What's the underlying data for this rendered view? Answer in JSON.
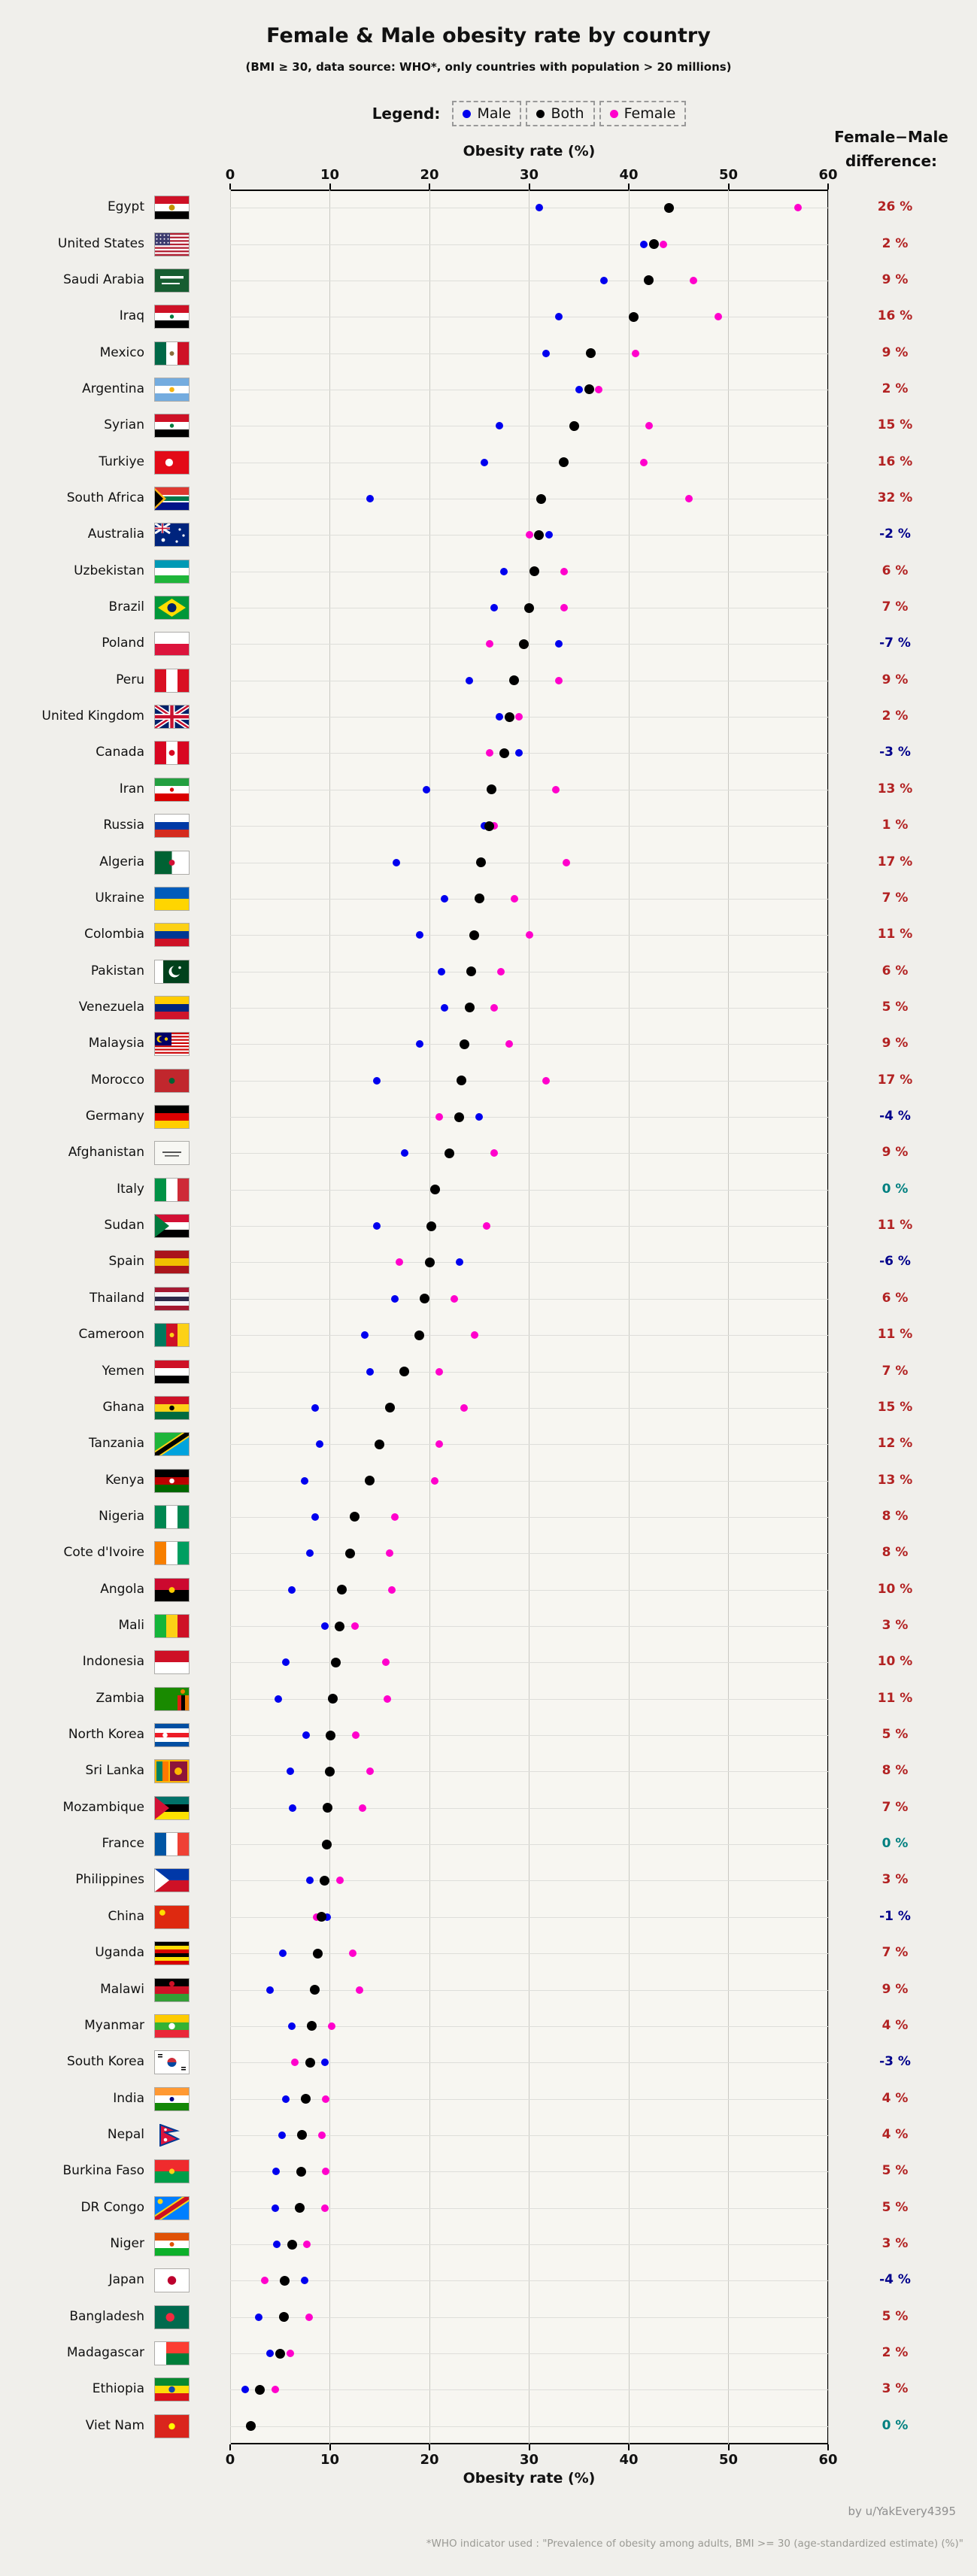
{
  "title": "Female & Male obesity rate by country",
  "subtitle": "(BMI ≥ 30, data source: WHO*, only countries with population > 20 millions)",
  "legend": {
    "label": "Legend:",
    "items": [
      {
        "name": "Male",
        "color": "#0000ee"
      },
      {
        "name": "Both",
        "color": "#000000"
      },
      {
        "name": "Female",
        "color": "#ff00cc"
      }
    ]
  },
  "right_header_line1": "Female−Male",
  "right_header_line2": "difference:",
  "axis_label_top": "Obesity rate (%)",
  "axis_label_bottom": "Obesity rate (%)",
  "footer_credit": "by u/YakEvery4395",
  "footer_note": "*WHO indicator used : \"Prevalence of obesity among adults, BMI >= 30 (age-standardized estimate) (%)\"",
  "colors": {
    "male": "#0000ee",
    "both": "#000000",
    "female": "#ff00cc",
    "diff_positive": "#b22222",
    "diff_negative": "#00008b",
    "diff_zero": "#008080"
  },
  "chart_data": {
    "type": "scatter",
    "title": "Female & Male obesity rate by country",
    "xlabel": "Obesity rate (%)",
    "xlim": [
      0,
      60
    ],
    "x_ticks": [
      0,
      10,
      20,
      30,
      40,
      50,
      60
    ],
    "grid": true,
    "series_names": [
      "Male",
      "Both",
      "Female"
    ],
    "countries": [
      {
        "name": "Egypt",
        "male": 31,
        "both": 44,
        "female": 57,
        "diff": "26 %",
        "flag": {
          "t": "h",
          "c": [
            "#ce1126",
            "#ffffff",
            "#000000"
          ],
          "dot": {
            "c": "#c09300",
            "x": 0.5,
            "y": 0.5,
            "r": 0.13
          }
        }
      },
      {
        "name": "United States",
        "male": 41.5,
        "both": 42.5,
        "female": 43.5,
        "diff": "2 %",
        "flag": {
          "t": "usa"
        }
      },
      {
        "name": "Saudi Arabia",
        "male": 37.5,
        "both": 42,
        "female": 46.5,
        "diff": "9 %",
        "flag": {
          "t": "sa"
        }
      },
      {
        "name": "Iraq",
        "male": 33,
        "both": 40.5,
        "female": 49,
        "diff": "16 %",
        "flag": {
          "t": "h",
          "c": [
            "#ce1126",
            "#ffffff",
            "#000000"
          ],
          "dot": {
            "c": "#007a3d",
            "x": 0.5,
            "y": 0.5,
            "r": 0.09
          }
        }
      },
      {
        "name": "Mexico",
        "male": 31.7,
        "both": 36.2,
        "female": 40.7,
        "diff": "9 %",
        "flag": {
          "t": "v",
          "c": [
            "#006847",
            "#ffffff",
            "#ce1126"
          ],
          "dot": {
            "c": "#8a6d3b",
            "x": 0.5,
            "y": 0.5,
            "r": 0.1
          }
        }
      },
      {
        "name": "Argentina",
        "male": 35,
        "both": 36,
        "female": 37,
        "diff": "2 %",
        "flag": {
          "t": "h",
          "c": [
            "#74acdf",
            "#ffffff",
            "#74acdf"
          ],
          "dot": {
            "c": "#f6b40e",
            "x": 0.5,
            "y": 0.5,
            "r": 0.11
          }
        }
      },
      {
        "name": "Syrian",
        "male": 27,
        "both": 34.5,
        "female": 42,
        "diff": "15 %",
        "flag": {
          "t": "h",
          "c": [
            "#ce1126",
            "#ffffff",
            "#000000"
          ],
          "dot": {
            "c": "#007a3d",
            "x": 0.5,
            "y": 0.5,
            "r": 0.09
          }
        }
      },
      {
        "name": "Turkiye",
        "male": 25.5,
        "both": 33.5,
        "female": 41.5,
        "diff": "16 %",
        "flag": {
          "t": "s",
          "c": [
            "#e30a17"
          ],
          "dot": {
            "c": "#ffffff",
            "x": 0.42,
            "y": 0.5,
            "r": 0.17
          }
        }
      },
      {
        "name": "South Africa",
        "male": 14,
        "both": 31.2,
        "female": 46,
        "diff": "32 %",
        "flag": {
          "t": "za"
        }
      },
      {
        "name": "Australia",
        "male": 32,
        "both": 31,
        "female": 30,
        "diff": "-2 %",
        "flag": {
          "t": "au"
        }
      },
      {
        "name": "Uzbekistan",
        "male": 27.5,
        "both": 30.5,
        "female": 33.5,
        "diff": "6 %",
        "flag": {
          "t": "h",
          "c": [
            "#0099b5",
            "#ffffff",
            "#1eb53a"
          ]
        }
      },
      {
        "name": "Brazil",
        "male": 26.5,
        "both": 30,
        "female": 33.5,
        "diff": "7 %",
        "flag": {
          "t": "br"
        }
      },
      {
        "name": "Poland",
        "male": 33,
        "both": 29.5,
        "female": 26,
        "diff": "-7 %",
        "flag": {
          "t": "h",
          "c": [
            "#ffffff",
            "#dc143c"
          ]
        }
      },
      {
        "name": "Peru",
        "male": 24,
        "both": 28.5,
        "female": 33,
        "diff": "9 %",
        "flag": {
          "t": "v",
          "c": [
            "#d91023",
            "#ffffff",
            "#d91023"
          ]
        }
      },
      {
        "name": "United Kingdom",
        "male": 27,
        "both": 28,
        "female": 29,
        "diff": "2 %",
        "flag": {
          "t": "uk"
        }
      },
      {
        "name": "Canada",
        "male": 29,
        "both": 27.5,
        "female": 26,
        "diff": "-3 %",
        "flag": {
          "t": "v",
          "c": [
            "#d80621",
            "#ffffff",
            "#d80621"
          ],
          "dot": {
            "c": "#d80621",
            "x": 0.5,
            "y": 0.5,
            "r": 0.13
          }
        }
      },
      {
        "name": "Iran",
        "male": 19.7,
        "both": 26.2,
        "female": 32.7,
        "diff": "13 %",
        "flag": {
          "t": "h",
          "c": [
            "#239f40",
            "#ffffff",
            "#da0000"
          ],
          "dot": {
            "c": "#da0000",
            "x": 0.5,
            "y": 0.5,
            "r": 0.09
          }
        }
      },
      {
        "name": "Russia",
        "male": 25.5,
        "both": 26,
        "female": 26.5,
        "diff": "1 %",
        "flag": {
          "t": "h",
          "c": [
            "#ffffff",
            "#0039a6",
            "#d52b1e"
          ]
        }
      },
      {
        "name": "Algeria",
        "male": 16.7,
        "both": 25.2,
        "female": 33.7,
        "diff": "17 %",
        "flag": {
          "t": "v",
          "c": [
            "#006233",
            "#ffffff"
          ],
          "dot": {
            "c": "#d21034",
            "x": 0.5,
            "y": 0.5,
            "r": 0.13
          }
        }
      },
      {
        "name": "Ukraine",
        "male": 21.5,
        "both": 25,
        "female": 28.5,
        "diff": "7 %",
        "flag": {
          "t": "h",
          "c": [
            "#005bbb",
            "#ffd500"
          ]
        }
      },
      {
        "name": "Colombia",
        "male": 19,
        "both": 24.5,
        "female": 30,
        "diff": "11 %",
        "flag": {
          "t": "h",
          "c": [
            "#fcd116",
            "#003893",
            "#ce1126"
          ]
        }
      },
      {
        "name": "Pakistan",
        "male": 21.2,
        "both": 24.2,
        "female": 27.2,
        "diff": "6 %",
        "flag": {
          "t": "pk"
        }
      },
      {
        "name": "Venezuela",
        "male": 21.5,
        "both": 24,
        "female": 26.5,
        "diff": "5 %",
        "flag": {
          "t": "h",
          "c": [
            "#ffcc00",
            "#00247d",
            "#cf142b"
          ]
        }
      },
      {
        "name": "Malaysia",
        "male": 19,
        "both": 23.5,
        "female": 28,
        "diff": "9 %",
        "flag": {
          "t": "my"
        }
      },
      {
        "name": "Morocco",
        "male": 14.7,
        "both": 23.2,
        "female": 31.7,
        "diff": "17 %",
        "flag": {
          "t": "s",
          "c": [
            "#c1272d"
          ],
          "dot": {
            "c": "#006233",
            "x": 0.5,
            "y": 0.5,
            "r": 0.13
          }
        }
      },
      {
        "name": "Germany",
        "male": 25,
        "both": 23,
        "female": 21,
        "diff": "-4 %",
        "flag": {
          "t": "h",
          "c": [
            "#000000",
            "#dd0000",
            "#ffce00"
          ]
        }
      },
      {
        "name": "Afghanistan",
        "male": 17.5,
        "both": 22,
        "female": 26.5,
        "diff": "9 %",
        "flag": {
          "t": "af"
        }
      },
      {
        "name": "Italy",
        "male": 20.6,
        "both": 20.6,
        "female": 20.6,
        "diff": "0 %",
        "flag": {
          "t": "v",
          "c": [
            "#009246",
            "#ffffff",
            "#ce2b37"
          ]
        }
      },
      {
        "name": "Sudan",
        "male": 14.7,
        "both": 20.2,
        "female": 25.7,
        "diff": "11 %",
        "flag": {
          "t": "h",
          "c": [
            "#d21034",
            "#ffffff",
            "#000000"
          ],
          "tri": "#007a3d"
        }
      },
      {
        "name": "Spain",
        "male": 23,
        "both": 20,
        "female": 17,
        "diff": "-6 %",
        "flag": {
          "t": "h",
          "c": [
            "#aa151b",
            "#f1bf00",
            "#aa151b"
          ]
        }
      },
      {
        "name": "Thailand",
        "male": 16.5,
        "both": 19.5,
        "female": 22.5,
        "diff": "6 %",
        "flag": {
          "t": "h",
          "c": [
            "#a51931",
            "#f4f5f8",
            "#2d2a4a",
            "#f4f5f8",
            "#a51931"
          ]
        }
      },
      {
        "name": "Cameroon",
        "male": 13.5,
        "both": 19,
        "female": 24.5,
        "diff": "11 %",
        "flag": {
          "t": "v",
          "c": [
            "#007a5e",
            "#ce1126",
            "#fcd116"
          ],
          "dot": {
            "c": "#fcd116",
            "x": 0.5,
            "y": 0.5,
            "r": 0.1
          }
        }
      },
      {
        "name": "Yemen",
        "male": 14,
        "both": 17.5,
        "female": 21,
        "diff": "7 %",
        "flag": {
          "t": "h",
          "c": [
            "#ce1126",
            "#ffffff",
            "#000000"
          ]
        }
      },
      {
        "name": "Ghana",
        "male": 8.5,
        "both": 16,
        "female": 23.5,
        "diff": "15 %",
        "flag": {
          "t": "h",
          "c": [
            "#ce1126",
            "#fcd116",
            "#006b3f"
          ],
          "dot": {
            "c": "#000000",
            "x": 0.5,
            "y": 0.5,
            "r": 0.11
          }
        }
      },
      {
        "name": "Tanzania",
        "male": 9,
        "both": 15,
        "female": 21,
        "diff": "12 %",
        "flag": {
          "t": "tz"
        }
      },
      {
        "name": "Kenya",
        "male": 7.5,
        "both": 14,
        "female": 20.5,
        "diff": "13 %",
        "flag": {
          "t": "h",
          "c": [
            "#000000",
            "#bb0000",
            "#006600"
          ],
          "dot": {
            "c": "#ffffff",
            "x": 0.5,
            "y": 0.5,
            "r": 0.11
          }
        }
      },
      {
        "name": "Nigeria",
        "male": 8.5,
        "both": 12.5,
        "female": 16.5,
        "diff": "8 %",
        "flag": {
          "t": "v",
          "c": [
            "#008751",
            "#ffffff",
            "#008751"
          ]
        }
      },
      {
        "name": "Cote d'Ivoire",
        "male": 8,
        "both": 12,
        "female": 16,
        "diff": "8 %",
        "flag": {
          "t": "v",
          "c": [
            "#f77f00",
            "#ffffff",
            "#009e60"
          ]
        }
      },
      {
        "name": "Angola",
        "male": 6.2,
        "both": 11.2,
        "female": 16.2,
        "diff": "10 %",
        "flag": {
          "t": "h",
          "c": [
            "#cc092f",
            "#000000"
          ],
          "dot": {
            "c": "#ffcb00",
            "x": 0.5,
            "y": 0.5,
            "r": 0.13
          }
        }
      },
      {
        "name": "Mali",
        "male": 9.5,
        "both": 11,
        "female": 12.5,
        "diff": "3 %",
        "flag": {
          "t": "v",
          "c": [
            "#14b53a",
            "#fcd116",
            "#ce1126"
          ]
        }
      },
      {
        "name": "Indonesia",
        "male": 5.6,
        "both": 10.6,
        "female": 15.6,
        "diff": "10 %",
        "flag": {
          "t": "h",
          "c": [
            "#ce1126",
            "#ffffff"
          ]
        }
      },
      {
        "name": "Zambia",
        "male": 4.8,
        "both": 10.3,
        "female": 15.8,
        "diff": "11 %",
        "flag": {
          "t": "zm"
        }
      },
      {
        "name": "North Korea",
        "male": 7.6,
        "both": 10.1,
        "female": 12.6,
        "diff": "5 %",
        "flag": {
          "t": "h",
          "c": [
            "#024fa2",
            "#ffffff",
            "#ed1c27",
            "#ffffff",
            "#024fa2"
          ],
          "dot": {
            "c": "#ffffff",
            "x": 0.3,
            "y": 0.5,
            "r": 0.11
          }
        }
      },
      {
        "name": "Sri Lanka",
        "male": 6,
        "both": 10,
        "female": 14,
        "diff": "8 %",
        "flag": {
          "t": "lk"
        }
      },
      {
        "name": "Mozambique",
        "male": 6.3,
        "both": 9.8,
        "female": 13.3,
        "diff": "7 %",
        "flag": {
          "t": "h",
          "c": [
            "#007168",
            "#000000",
            "#fce100"
          ],
          "tri": "#d21034"
        }
      },
      {
        "name": "France",
        "male": 9.7,
        "both": 9.7,
        "female": 9.7,
        "diff": "0 %",
        "flag": {
          "t": "v",
          "c": [
            "#0055a4",
            "#ffffff",
            "#ef4135"
          ]
        }
      },
      {
        "name": "Philippines",
        "male": 8,
        "both": 9.5,
        "female": 11,
        "diff": "3 %",
        "flag": {
          "t": "h",
          "c": [
            "#0038a8",
            "#ce1126"
          ],
          "tri": "#ffffff"
        }
      },
      {
        "name": "China",
        "male": 9.7,
        "both": 9.2,
        "female": 8.7,
        "diff": "-1 %",
        "flag": {
          "t": "s",
          "c": [
            "#de2910"
          ],
          "dot": {
            "c": "#ffde00",
            "x": 0.22,
            "y": 0.3,
            "r": 0.13
          }
        }
      },
      {
        "name": "Uganda",
        "male": 5.3,
        "both": 8.8,
        "female": 12.3,
        "diff": "7 %",
        "flag": {
          "t": "h",
          "c": [
            "#000000",
            "#fcdc04",
            "#d90000",
            "#000000",
            "#fcdc04",
            "#d90000"
          ]
        }
      },
      {
        "name": "Malawi",
        "male": 4,
        "both": 8.5,
        "female": 13,
        "diff": "9 %",
        "flag": {
          "t": "h",
          "c": [
            "#000000",
            "#ce1126",
            "#339e35"
          ],
          "dot": {
            "c": "#ce1126",
            "x": 0.5,
            "y": 0.22,
            "r": 0.12
          }
        }
      },
      {
        "name": "Myanmar",
        "male": 6.2,
        "both": 8.2,
        "female": 10.2,
        "diff": "4 %",
        "flag": {
          "t": "h",
          "c": [
            "#fecb00",
            "#34b233",
            "#ea2839"
          ],
          "dot": {
            "c": "#ffffff",
            "x": 0.5,
            "y": 0.5,
            "r": 0.14
          }
        }
      },
      {
        "name": "South Korea",
        "male": 9.5,
        "both": 8,
        "female": 6.5,
        "diff": "-3 %",
        "flag": {
          "t": "kr"
        }
      },
      {
        "name": "India",
        "male": 5.6,
        "both": 7.6,
        "female": 9.6,
        "diff": "4 %",
        "flag": {
          "t": "h",
          "c": [
            "#ff9933",
            "#ffffff",
            "#138808"
          ],
          "dot": {
            "c": "#000080",
            "x": 0.5,
            "y": 0.5,
            "r": 0.1
          }
        }
      },
      {
        "name": "Nepal",
        "male": 5.2,
        "both": 7.2,
        "female": 9.2,
        "diff": "4 %",
        "flag": {
          "t": "np"
        }
      },
      {
        "name": "Burkina Faso",
        "male": 4.6,
        "both": 7.1,
        "female": 9.6,
        "diff": "5 %",
        "flag": {
          "t": "h",
          "c": [
            "#ef2b2d",
            "#009e49"
          ],
          "dot": {
            "c": "#fcd116",
            "x": 0.5,
            "y": 0.5,
            "r": 0.12
          }
        }
      },
      {
        "name": "DR Congo",
        "male": 4.5,
        "both": 7,
        "female": 9.5,
        "diff": "5 %",
        "flag": {
          "t": "cd"
        }
      },
      {
        "name": "Niger",
        "male": 4.7,
        "both": 6.2,
        "female": 7.7,
        "diff": "3 %",
        "flag": {
          "t": "h",
          "c": [
            "#e05206",
            "#ffffff",
            "#0db02b"
          ],
          "dot": {
            "c": "#e05206",
            "x": 0.5,
            "y": 0.5,
            "r": 0.1
          }
        }
      },
      {
        "name": "Japan",
        "male": 7.5,
        "both": 5.5,
        "female": 3.5,
        "diff": "-4 %",
        "flag": {
          "t": "s",
          "c": [
            "#ffffff"
          ],
          "dot": {
            "c": "#bc002d",
            "x": 0.5,
            "y": 0.5,
            "r": 0.19
          }
        }
      },
      {
        "name": "Bangladesh",
        "male": 2.9,
        "both": 5.4,
        "female": 7.9,
        "diff": "5 %",
        "flag": {
          "t": "s",
          "c": [
            "#006a4e"
          ],
          "dot": {
            "c": "#f42a41",
            "x": 0.45,
            "y": 0.5,
            "r": 0.19
          }
        }
      },
      {
        "name": "Madagascar",
        "male": 4,
        "both": 5,
        "female": 6,
        "diff": "2 %",
        "flag": {
          "t": "mg"
        }
      },
      {
        "name": "Ethiopia",
        "male": 1.5,
        "both": 3,
        "female": 4.5,
        "diff": "3 %",
        "flag": {
          "t": "h",
          "c": [
            "#078930",
            "#fcdd09",
            "#da121a"
          ],
          "dot": {
            "c": "#0f47af",
            "x": 0.5,
            "y": 0.5,
            "r": 0.14
          }
        }
      },
      {
        "name": "Viet Nam",
        "male": 2.1,
        "both": 2.1,
        "female": 2.1,
        "diff": "0 %",
        "flag": {
          "t": "s",
          "c": [
            "#da251d"
          ],
          "dot": {
            "c": "#ffff00",
            "x": 0.5,
            "y": 0.5,
            "r": 0.14
          }
        }
      }
    ]
  }
}
